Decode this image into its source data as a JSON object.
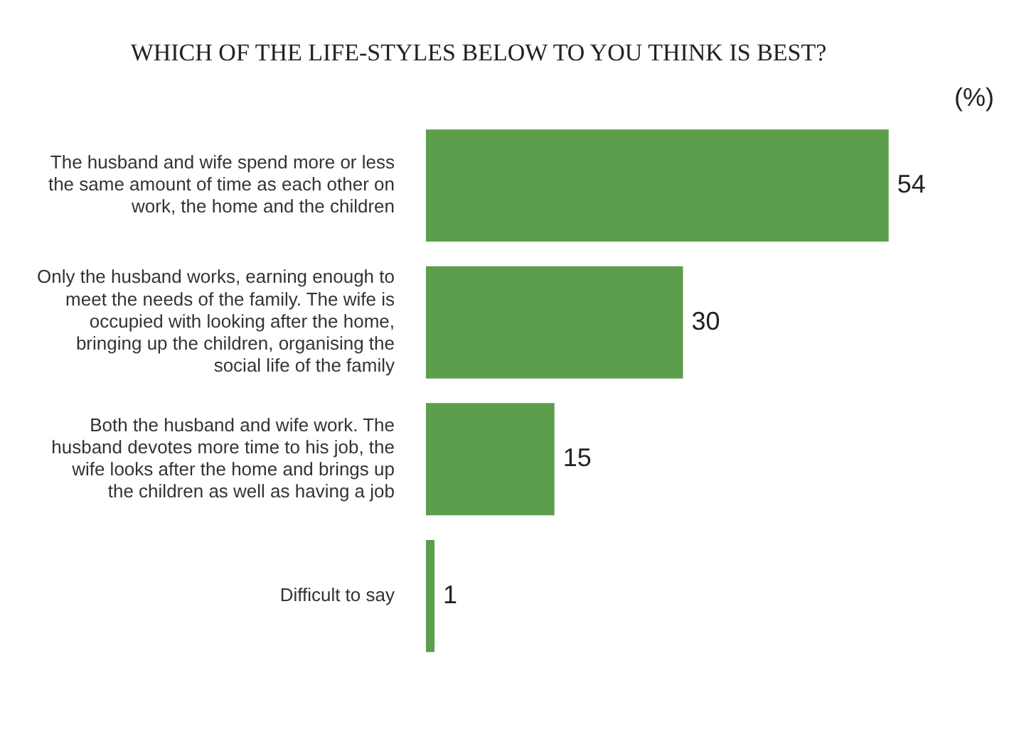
{
  "chart_data": {
    "type": "bar",
    "orientation": "horizontal",
    "title": "WHICH OF THE LIFE-STYLES BELOW TO YOU THINK IS BEST?",
    "categories": [
      "The husband and wife spend more or less the same amount of time as each other on work, the home and the children",
      "Only the husband works, earning enough to meet the needs of the family. The wife is occupied with looking after the home, bringing up the children, organising the social life of the family",
      "Both the husband and wife work. The husband devotes more time to his job, the wife looks after the home and brings up the children as well as having a job",
      "Difficult to say"
    ],
    "values": [
      54,
      30,
      15,
      1
    ],
    "color": "#5c9e4c",
    "data_labels": true,
    "annotations": [
      "(%)"
    ]
  }
}
